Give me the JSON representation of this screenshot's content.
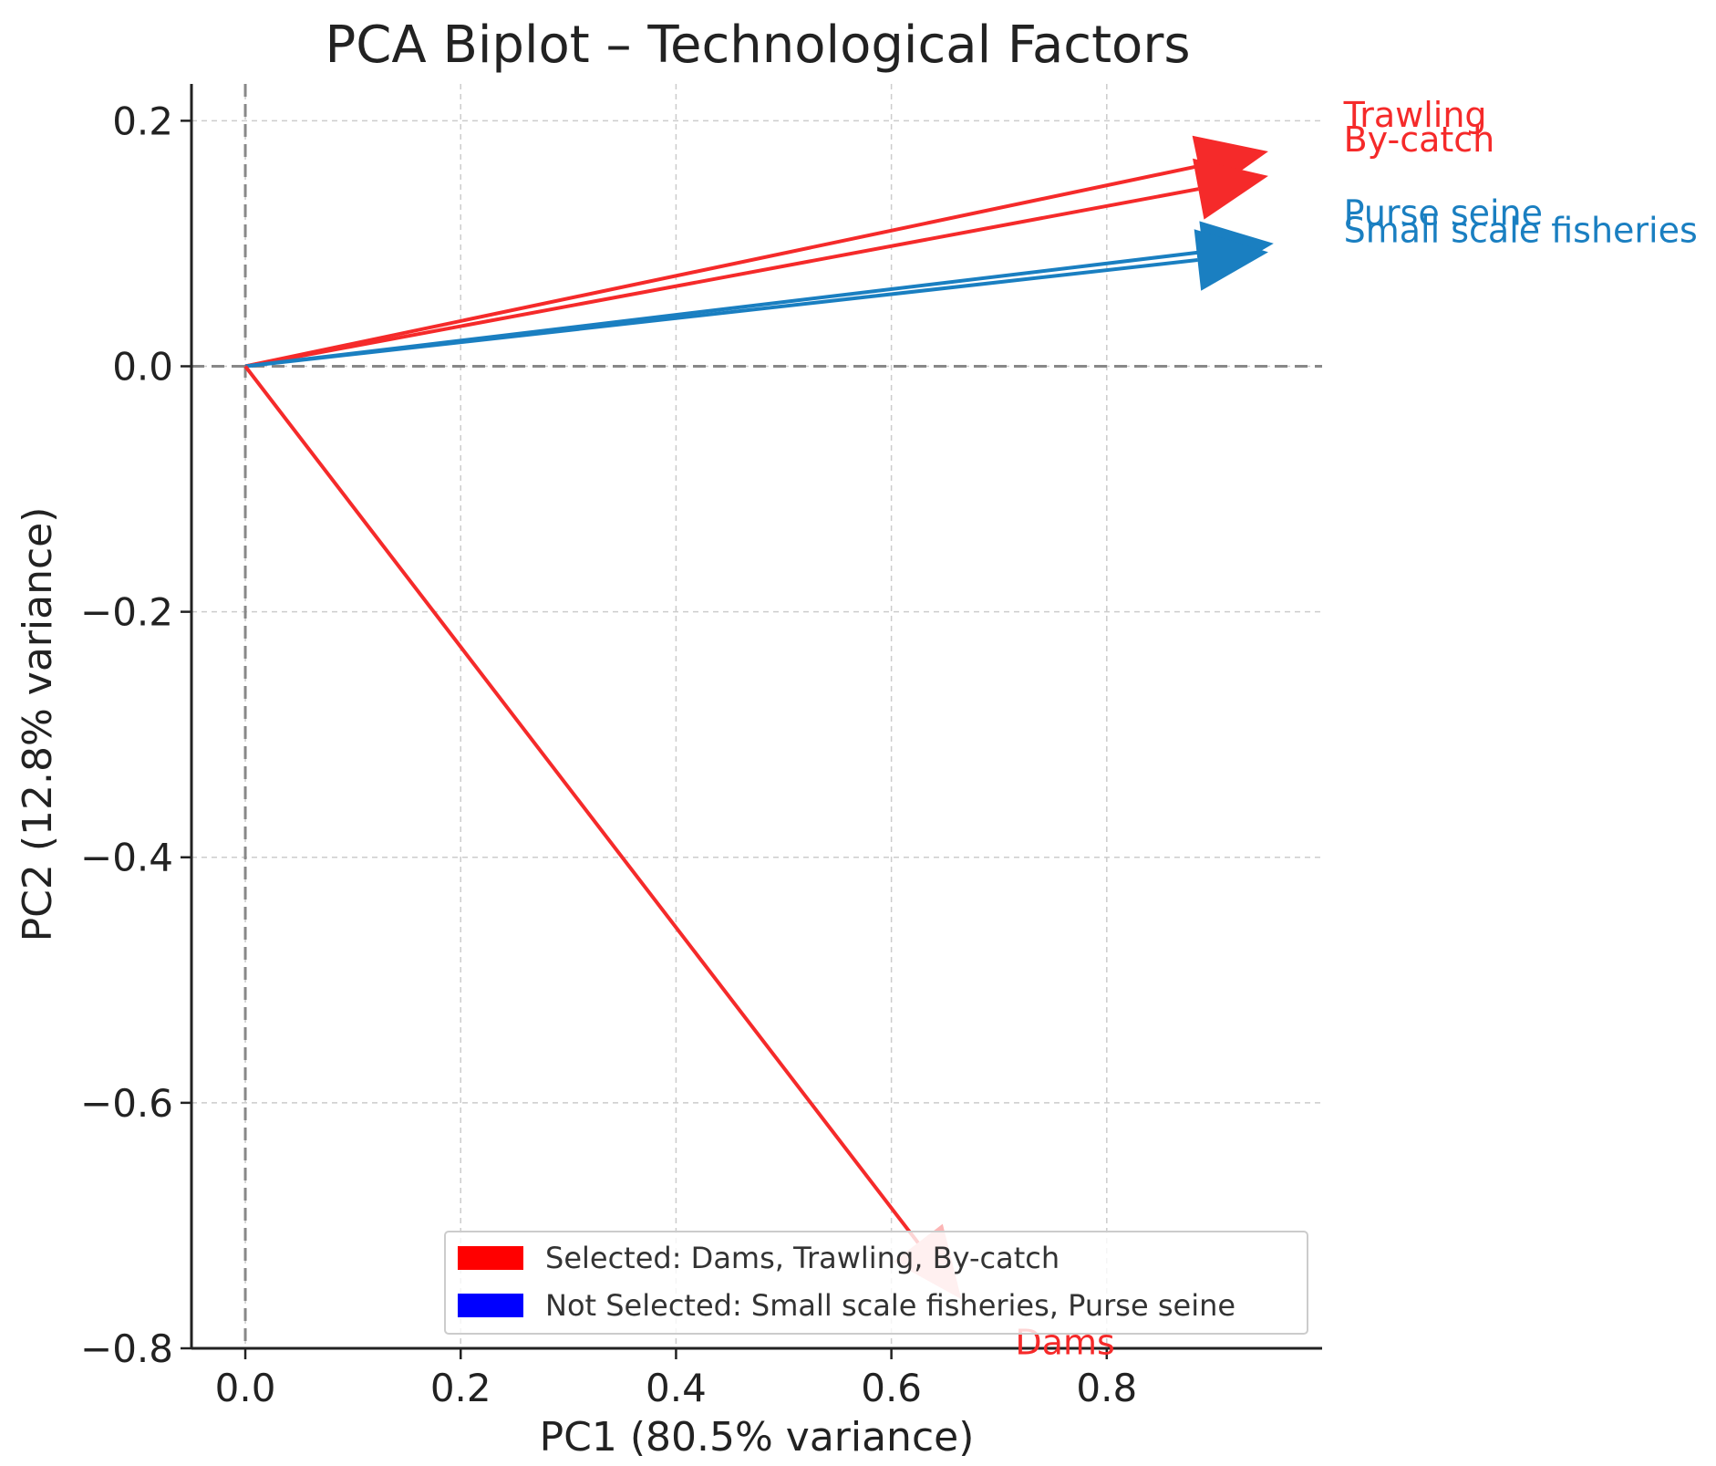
{
  "chart_data": {
    "type": "biplot",
    "title": "PCA Biplot – Technological Factors",
    "xlabel": "PC1 (80.5% variance)",
    "ylabel": "PC2 (12.8% variance)",
    "xlim": [
      -0.05,
      1.0
    ],
    "ylim": [
      -0.8,
      0.23
    ],
    "xticks": [
      0.0,
      0.2,
      0.4,
      0.6,
      0.8
    ],
    "xtick_labels": [
      "0.0",
      "0.2",
      "0.4",
      "0.6",
      "0.8"
    ],
    "yticks": [
      0.2,
      0.0,
      -0.2,
      -0.4,
      -0.6,
      -0.8
    ],
    "ytick_labels": [
      "0.2",
      "0.0",
      "−0.2",
      "−0.4",
      "−0.6",
      "−0.8"
    ],
    "grid": true,
    "zero_lines": true,
    "vectors": [
      {
        "label": "Trawling",
        "x": 0.95,
        "y": 0.175,
        "group": "selected",
        "label_x": 1.02,
        "label_y": 0.195
      },
      {
        "label": "By-catch",
        "x": 0.95,
        "y": 0.155,
        "group": "selected",
        "label_x": 1.02,
        "label_y": 0.175
      },
      {
        "label": "Purse seine",
        "x": 0.955,
        "y": 0.1,
        "group": "not_selected",
        "label_x": 1.02,
        "label_y": 0.115
      },
      {
        "label": "Small scale fisheries",
        "x": 0.95,
        "y": 0.093,
        "group": "not_selected",
        "label_x": 1.02,
        "label_y": 0.101
      },
      {
        "label": "Dams",
        "x": 0.665,
        "y": -0.76,
        "group": "selected",
        "label_x": 0.715,
        "label_y": -0.805
      }
    ],
    "colors": {
      "selected": "#f52a2a",
      "not_selected": "#1a7fc1",
      "legend_selected": "#ff0000",
      "legend_not_selected": "#0000ff",
      "grid": "#cccccc",
      "zero": "#888888"
    },
    "legend": {
      "placement": "lower-right",
      "items": [
        {
          "label": "Selected: Dams, Trawling, By-catch",
          "group": "legend_selected"
        },
        {
          "label": "Not Selected: Small scale fisheries, Purse seine",
          "group": "legend_not_selected"
        }
      ]
    }
  }
}
